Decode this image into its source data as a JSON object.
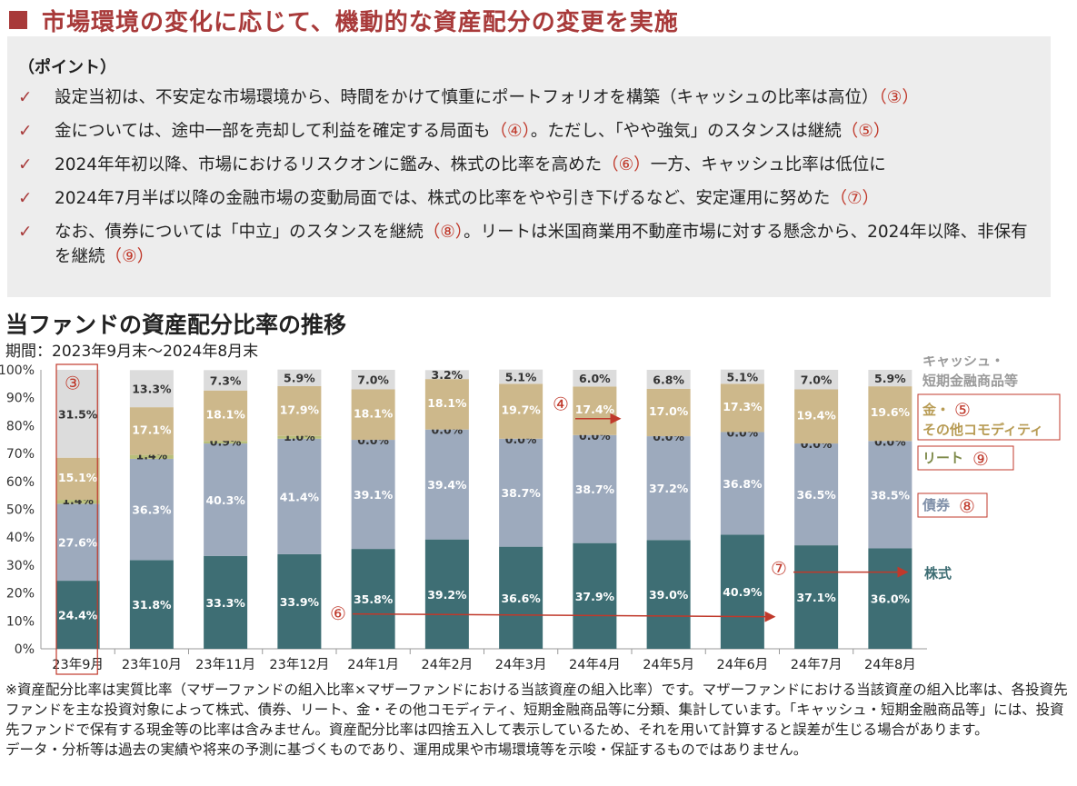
{
  "heading": "市場環境の変化に応じて、機動的な資産配分の変更を実施",
  "points": {
    "title": "（ポイント）",
    "check": "✓",
    "items": [
      {
        "text": "設定当初は、不安定な市場環境から、時間をかけて慎重にポートフォリオを構築（キャッシュの比率は高位）",
        "mark": "（③）"
      },
      {
        "text": "金については、途中一部を売却して利益を確定する局面も",
        "mark": "（④）",
        "text2": "。ただし、「やや強気」のスタンスは継続",
        "mark2": "（⑤）"
      },
      {
        "text": "2024年年初以降、市場におけるリスクオンに鑑み、株式の比率を高めた",
        "mark": "（⑥）",
        "text2": "一方、キャッシュ比率は低位に",
        "mark2": ""
      },
      {
        "text": "2024年7月半ば以降の金融市場の変動局面では、株式の比率をやや引き下げるなど、安定運用に努めた",
        "mark": "（⑦）"
      },
      {
        "text": "なお、債券については「中立」のスタンスを継続",
        "mark": "（⑧）",
        "text2": "。リートは米国商業用不動産市場に対する懸念から、2024年以降、非保有を継続",
        "mark2": "（⑨）"
      }
    ]
  },
  "chart_title": "当ファンドの資産配分比率の推移",
  "period": "期間：2023年9月末～2024年8月末",
  "chart_data": {
    "type": "bar",
    "stacked": true,
    "categories": [
      "23年9月",
      "23年10月",
      "23年11月",
      "23年12月",
      "24年1月",
      "24年2月",
      "24年3月",
      "24年4月",
      "24年5月",
      "24年6月",
      "24年7月",
      "24年8月"
    ],
    "ylim": [
      0,
      100
    ],
    "yticks": [
      "0%",
      "10%",
      "20%",
      "30%",
      "40%",
      "50%",
      "60%",
      "70%",
      "80%",
      "90%",
      "100%"
    ],
    "series": [
      {
        "name": "株式",
        "color": "#3e6e74",
        "values": [
          24.4,
          31.8,
          33.3,
          33.9,
          35.8,
          39.2,
          36.6,
          37.9,
          39.0,
          40.9,
          37.1,
          36.0
        ]
      },
      {
        "name": "債券",
        "color": "#9daabd",
        "values": [
          27.6,
          36.3,
          40.3,
          41.4,
          39.1,
          39.4,
          38.7,
          38.7,
          37.2,
          36.8,
          36.5,
          38.5
        ]
      },
      {
        "name": "リート",
        "color": "#b9bf7b",
        "values": [
          1.4,
          1.4,
          0.9,
          1.0,
          0.0,
          0.0,
          0.0,
          0.0,
          0.0,
          0.0,
          0.0,
          0.0
        ]
      },
      {
        "name": "金・その他コモディティ",
        "color": "#cdb88b",
        "values": [
          15.1,
          17.1,
          18.1,
          17.9,
          18.1,
          18.1,
          19.7,
          17.4,
          17.0,
          17.3,
          19.4,
          19.6
        ]
      },
      {
        "name": "キャッシュ・短期金融商品等",
        "color": "#dcdcdc",
        "values": [
          31.5,
          13.3,
          7.3,
          5.9,
          7.0,
          3.2,
          5.1,
          6.0,
          6.8,
          5.1,
          7.0,
          5.9
        ]
      }
    ],
    "legend": {
      "cash_line1": "キャッシュ・",
      "cash_line2": "短期金融商品等",
      "gold_line1": "金・",
      "gold_line2": "その他コモディティ",
      "reit": "リート",
      "bond": "債券",
      "stock": "株式",
      "gold_mark": "⑤",
      "reit_mark": "⑨",
      "bond_mark": "⑧"
    },
    "annotations": {
      "m3": "③",
      "m4": "④",
      "m6": "⑥",
      "m7": "⑦"
    },
    "colors": {
      "accent": "#a83a3a",
      "annotation": "#c0392b"
    }
  },
  "notes": [
    "※資産配分比率は実質比率（マザーファンドの組入比率×マザーファンドにおける当該資産の組入比率）です。マザーファンドにおける当該資産の組入比率は、各投資先ファンドを主な投資対象によって株式、債券、リート、金・その他コモディティ、短期金融商品等に分類、集計しています。「キャッシュ・短期金融商品等」には、投資先ファンドで保有する現金等の比率は含みません。資産配分比率は四捨五入して表示しているため、それを用いて計算すると誤差が生じる場合があります。",
    "データ・分析等は過去の実績や将来の予測に基づくものであり、運用成果や市場環境等を示唆・保証するものではありません。"
  ]
}
